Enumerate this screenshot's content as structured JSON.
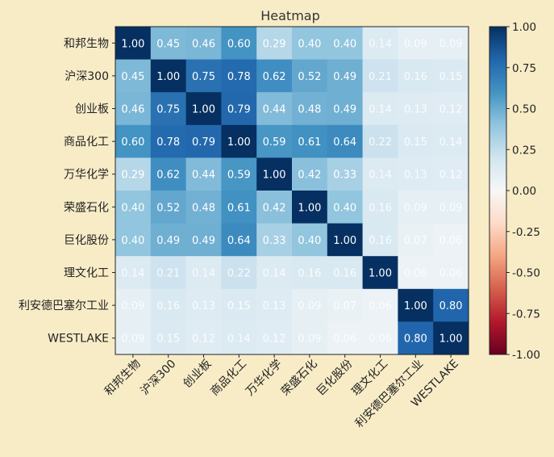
{
  "chart_data": {
    "type": "heatmap",
    "title": "Heatmap",
    "labels": [
      "和邦生物",
      "沪深300",
      "创业板",
      "商品化工",
      "万华化学",
      "荣盛石化",
      "巨化股份",
      "理文化工",
      "利安德巴塞尔工业",
      "WESTLAKE"
    ],
    "matrix": [
      [
        1.0,
        0.45,
        0.46,
        0.6,
        0.29,
        0.4,
        0.4,
        0.14,
        0.09,
        0.09
      ],
      [
        0.45,
        1.0,
        0.75,
        0.78,
        0.62,
        0.52,
        0.49,
        0.21,
        0.16,
        0.15
      ],
      [
        0.46,
        0.75,
        1.0,
        0.79,
        0.44,
        0.48,
        0.49,
        0.14,
        0.13,
        0.12
      ],
      [
        0.6,
        0.78,
        0.79,
        1.0,
        0.59,
        0.61,
        0.64,
        0.22,
        0.15,
        0.14
      ],
      [
        0.29,
        0.62,
        0.44,
        0.59,
        1.0,
        0.42,
        0.33,
        0.14,
        0.13,
        0.12
      ],
      [
        0.4,
        0.52,
        0.48,
        0.61,
        0.42,
        1.0,
        0.4,
        0.16,
        0.09,
        0.09
      ],
      [
        0.4,
        0.49,
        0.49,
        0.64,
        0.33,
        0.4,
        1.0,
        0.16,
        0.07,
        0.06
      ],
      [
        0.14,
        0.21,
        0.14,
        0.22,
        0.14,
        0.16,
        0.16,
        1.0,
        0.06,
        0.06
      ],
      [
        0.09,
        0.16,
        0.13,
        0.15,
        0.13,
        0.09,
        0.07,
        0.06,
        1.0,
        0.8
      ],
      [
        0.09,
        0.15,
        0.12,
        0.14,
        0.12,
        0.09,
        0.06,
        0.06,
        0.8,
        1.0
      ]
    ],
    "value_format": "2 decimals",
    "colormap": "RdBu",
    "colormap_stops": [
      "#67001f",
      "#b2182b",
      "#d6604d",
      "#f4a582",
      "#fddbc7",
      "#f7f7f7",
      "#d1e5f0",
      "#92c5de",
      "#4393c3",
      "#2166ac",
      "#053061"
    ],
    "vmin": -1.0,
    "vmax": 1.0,
    "colorbar_ticks": [
      "1.00",
      "0.75",
      "0.50",
      "0.25",
      "0.00",
      "-0.25",
      "-0.50",
      "-0.75",
      "-1.00"
    ],
    "background": "#f8ecc7"
  }
}
